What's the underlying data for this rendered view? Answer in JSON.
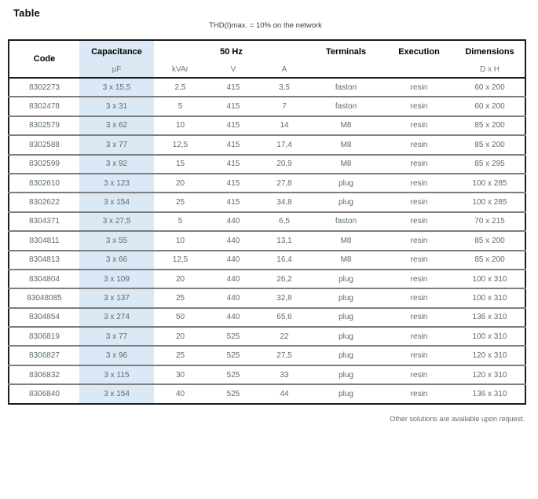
{
  "page": {
    "title": "Table",
    "subtitle": "THD(I)max. = 10% on the network",
    "footnote": "Other solutions are available upon request."
  },
  "table": {
    "headers": {
      "code": "Code",
      "capacitance": "Capacitance",
      "frequency": "50 Hz",
      "terminals": "Terminals",
      "execution": "Execution",
      "dimensions": "Dimensions"
    },
    "subheaders": {
      "capacitance_unit": "µF",
      "kvar": "kVAr",
      "volt": "V",
      "amp": "A",
      "dxh": "D x H"
    },
    "columns_keys": [
      "code",
      "capacitance",
      "kvar",
      "volt",
      "amp",
      "terminals",
      "execution",
      "dimensions"
    ],
    "rows": [
      [
        "8302273",
        "3 x 15,5",
        "2,5",
        "415",
        "3,5",
        "faston",
        "resin",
        "60 x 200"
      ],
      [
        "8302478",
        "3 x 31",
        "5",
        "415",
        "7",
        "faston",
        "resin",
        "60 x 200"
      ],
      [
        "8302579",
        "3 x 62",
        "10",
        "415",
        "14",
        "M8",
        "resin",
        "85 x 200"
      ],
      [
        "8302588",
        "3 x 77",
        "12,5",
        "415",
        "17,4",
        "M8",
        "resin",
        "85 x 200"
      ],
      [
        "8302599",
        "3 x 92",
        "15",
        "415",
        "20,9",
        "M8",
        "resin",
        "85 x 295"
      ],
      [
        "8302610",
        "3 x 123",
        "20",
        "415",
        "27,8",
        "plug",
        "resin",
        "100 x 285"
      ],
      [
        "8302622",
        "3 x 154",
        "25",
        "415",
        "34,8",
        "plug",
        "resin",
        "100 x 285"
      ],
      [
        "8304371",
        "3 x 27,5",
        "5",
        "440",
        "6,5",
        "faston",
        "resin",
        "70 x 215"
      ],
      [
        "8304811",
        "3 x 55",
        "10",
        "440",
        "13,1",
        "M8",
        "resin",
        "85 x 200"
      ],
      [
        "8304813",
        "3 x 66",
        "12,5",
        "440",
        "16,4",
        "M8",
        "resin",
        "85 x 200"
      ],
      [
        "8304804",
        "3 x 109",
        "20",
        "440",
        "26,2",
        "plug",
        "resin",
        "100 x 310"
      ],
      [
        "83048085",
        "3 x 137",
        "25",
        "440",
        "32,8",
        "plug",
        "resin",
        "100 x 310"
      ],
      [
        "8304854",
        "3 x 274",
        "50",
        "440",
        "65,6",
        "plug",
        "resin",
        "136 x 310"
      ],
      [
        "8306819",
        "3 x 77",
        "20",
        "525",
        "22",
        "plug",
        "resin",
        "100 x 310"
      ],
      [
        "8306827",
        "3 x 96",
        "25",
        "525",
        "27,5",
        "plug",
        "resin",
        "120 x 310"
      ],
      [
        "8306832",
        "3 x 115",
        "30",
        "525",
        "33",
        "plug",
        "resin",
        "120 x 310"
      ],
      [
        "8306840",
        "3 x 154",
        "40",
        "525",
        "44",
        "plug",
        "resin",
        "136 x 310"
      ]
    ],
    "colors": {
      "highlight_column_bg": "#dbe8f5",
      "outer_border": "#1d1d1d",
      "row_separator": "#7e7e7e",
      "data_text": "#5c6b74",
      "header_text": "#000000",
      "subheader_text": "#6b7b85"
    }
  }
}
